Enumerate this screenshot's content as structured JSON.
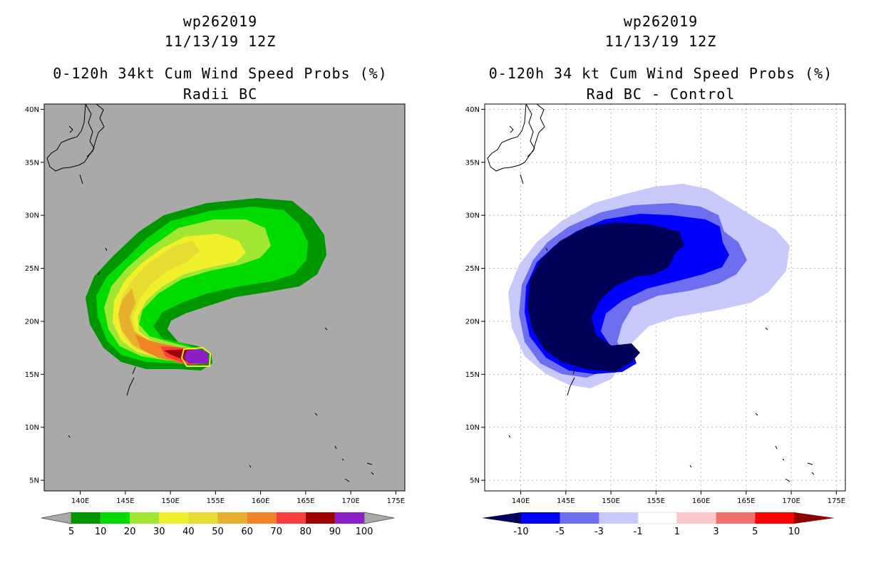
{
  "panels": [
    {
      "id": "left",
      "title_line1": "wp262019",
      "title_line2": "11/13/19 12Z",
      "title_line3": "0-120h 34kt Cum Wind Speed Probs (%)",
      "title_line4": "Radii BC",
      "background": "#a9a9a9",
      "grid": false,
      "colorbar": {
        "labels": [
          "5",
          "10",
          "20",
          "30",
          "40",
          "50",
          "60",
          "70",
          "80",
          "90",
          "100"
        ],
        "colors": [
          "#009600",
          "#00dc00",
          "#a0e632",
          "#f0f02a",
          "#e6dc32",
          "#e6af2d",
          "#f08228",
          "#fa3c3c",
          "#a00000",
          "#8c1ec8"
        ]
      }
    },
    {
      "id": "right",
      "title_line1": "wp262019",
      "title_line2": "11/13/19 12Z",
      "title_line3": "0-120h 34 kt Cum Wind Speed Probs (%)",
      "title_line4": "Rad BC - Control",
      "background": "#ffffff",
      "grid": true,
      "colorbar": {
        "labels": [
          "-10",
          "-5",
          "-3",
          "-1",
          "1",
          "3",
          "5",
          "10"
        ],
        "colors": [
          "#00005a",
          "#0000ff",
          "#6e6ef0",
          "#c8c8fa",
          "#ffffff",
          "#fac8c8",
          "#f07070",
          "#ff0000",
          "#8c0000"
        ]
      }
    }
  ],
  "chart_data": {
    "type": "heatmap",
    "lat_ticks": [
      "40N",
      "35N",
      "30N",
      "25N",
      "20N",
      "15N",
      "10N",
      "5N"
    ],
    "lon_ticks": [
      "140E",
      "145E",
      "150E",
      "155E",
      "160E",
      "165E",
      "170E",
      "175E"
    ],
    "lat_range": [
      4,
      40.5
    ],
    "lon_range": [
      136,
      176
    ],
    "units": "%"
  }
}
